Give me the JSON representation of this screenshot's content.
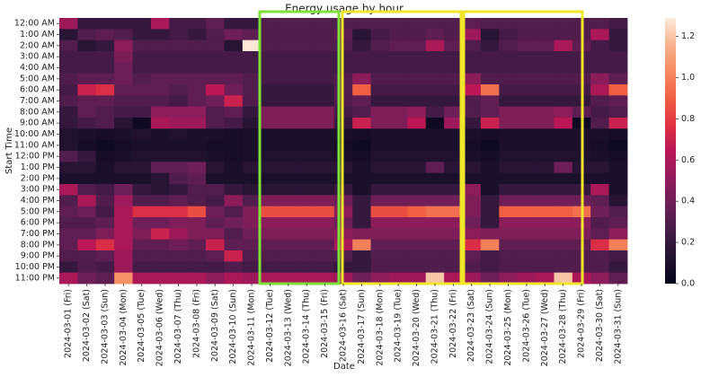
{
  "chart_data": {
    "type": "heatmap",
    "title": "Energy usage by hour",
    "x_label": "Date",
    "y_label": "Start Time",
    "colormap": "rocket",
    "x": [
      "2024-03-01 (Fri)",
      "2024-03-02 (Sat)",
      "2024-03-03 (Sun)",
      "2024-03-04 (Mon)",
      "2024-03-05 (Tue)",
      "2024-03-06 (Wed)",
      "2024-03-07 (Thu)",
      "2024-03-08 (Fri)",
      "2024-03-09 (Sat)",
      "2024-03-10 (Sun)",
      "2024-03-11 (Mon)",
      "2024-03-12 (Tue)",
      "2024-03-13 (Wed)",
      "2024-03-14 (Thu)",
      "2024-03-15 (Fri)",
      "2024-03-16 (Sat)",
      "2024-03-17 (Sun)",
      "2024-03-18 (Mon)",
      "2024-03-19 (Tue)",
      "2024-03-20 (Wed)",
      "2024-03-21 (Thu)",
      "2024-03-22 (Fri)",
      "2024-03-23 (Sat)",
      "2024-03-24 (Sun)",
      "2024-03-25 (Mon)",
      "2024-03-26 (Tue)",
      "2024-03-27 (Wed)",
      "2024-03-28 (Thu)",
      "2024-03-29 (Fri)",
      "2024-03-30 (Sat)",
      "2024-03-31 (Sun)"
    ],
    "y": [
      "12:00 AM",
      "1:00 AM",
      "2:00 AM",
      "3:00 AM",
      "4:00 AM",
      "5:00 AM",
      "6:00 AM",
      "7:00 AM",
      "8:00 AM",
      "9:00 AM",
      "10:00 AM",
      "11:00 AM",
      "12:00 PM",
      "1:00 PM",
      "2:00 PM",
      "3:00 PM",
      "4:00 PM",
      "5:00 PM",
      "6:00 PM",
      "7:00 PM",
      "8:00 PM",
      "9:00 PM",
      "10:00 PM",
      "11:00 PM"
    ],
    "z": [
      [
        0.55,
        0.2,
        0.2,
        0.2,
        0.2,
        0.6,
        0.25,
        0.25,
        0.35,
        0.2,
        0.2,
        0.3,
        0.3,
        0.3,
        0.3,
        0.3,
        0.3,
        0.3,
        0.3,
        0.3,
        0.3,
        0.3,
        0.35,
        0.3,
        0.3,
        0.3,
        0.3,
        0.3,
        0.3,
        0.3,
        0.25
      ],
      [
        0.15,
        0.3,
        0.35,
        0.3,
        0.2,
        0.2,
        0.25,
        0.2,
        0.3,
        0.4,
        0.35,
        0.3,
        0.3,
        0.3,
        0.3,
        0.35,
        0.15,
        0.25,
        0.3,
        0.3,
        0.35,
        0.3,
        0.55,
        0.15,
        0.25,
        0.3,
        0.3,
        0.3,
        0.3,
        0.6,
        0.2
      ],
      [
        0.3,
        0.15,
        0.2,
        0.5,
        0.3,
        0.3,
        0.3,
        0.3,
        0.3,
        0.15,
        1.28,
        0.3,
        0.3,
        0.3,
        0.3,
        0.3,
        0.2,
        0.3,
        0.35,
        0.35,
        0.6,
        0.35,
        0.3,
        0.2,
        0.3,
        0.35,
        0.35,
        0.6,
        0.35,
        0.25,
        0.2
      ],
      [
        0.25,
        0.25,
        0.25,
        0.45,
        0.25,
        0.25,
        0.25,
        0.25,
        0.25,
        0.25,
        0.25,
        0.25,
        0.25,
        0.25,
        0.25,
        0.25,
        0.25,
        0.25,
        0.25,
        0.25,
        0.25,
        0.25,
        0.25,
        0.25,
        0.25,
        0.25,
        0.25,
        0.25,
        0.25,
        0.25,
        0.25
      ],
      [
        0.25,
        0.25,
        0.25,
        0.4,
        0.25,
        0.25,
        0.25,
        0.25,
        0.25,
        0.25,
        0.25,
        0.25,
        0.25,
        0.25,
        0.25,
        0.25,
        0.25,
        0.25,
        0.25,
        0.25,
        0.25,
        0.25,
        0.25,
        0.25,
        0.25,
        0.25,
        0.25,
        0.25,
        0.25,
        0.25,
        0.25
      ],
      [
        0.3,
        0.35,
        0.35,
        0.4,
        0.3,
        0.35,
        0.35,
        0.35,
        0.35,
        0.35,
        0.3,
        0.25,
        0.25,
        0.25,
        0.25,
        0.3,
        0.5,
        0.3,
        0.3,
        0.3,
        0.3,
        0.3,
        0.5,
        0.3,
        0.3,
        0.3,
        0.3,
        0.3,
        0.3,
        0.5,
        0.35
      ],
      [
        0.25,
        0.7,
        0.75,
        0.35,
        0.35,
        0.35,
        0.3,
        0.35,
        0.65,
        0.4,
        0.3,
        0.2,
        0.2,
        0.2,
        0.2,
        0.3,
        0.9,
        0.25,
        0.25,
        0.25,
        0.25,
        0.25,
        0.65,
        0.95,
        0.25,
        0.25,
        0.25,
        0.25,
        0.25,
        0.6,
        0.9
      ],
      [
        0.3,
        0.35,
        0.35,
        0.3,
        0.3,
        0.3,
        0.25,
        0.35,
        0.4,
        0.7,
        0.3,
        0.2,
        0.2,
        0.2,
        0.2,
        0.3,
        0.35,
        0.2,
        0.2,
        0.2,
        0.2,
        0.2,
        0.3,
        0.35,
        0.2,
        0.2,
        0.2,
        0.2,
        0.2,
        0.3,
        0.35
      ],
      [
        0.2,
        0.35,
        0.3,
        0.25,
        0.25,
        0.5,
        0.5,
        0.5,
        0.3,
        0.35,
        0.2,
        0.45,
        0.45,
        0.45,
        0.45,
        0.25,
        0.3,
        0.45,
        0.45,
        0.5,
        0.25,
        0.4,
        0.3,
        0.35,
        0.45,
        0.45,
        0.45,
        0.5,
        0.35,
        0.25,
        0.3
      ],
      [
        0.2,
        0.25,
        0.3,
        0.15,
        0.05,
        0.6,
        0.55,
        0.55,
        0.3,
        0.25,
        0.15,
        0.45,
        0.45,
        0.45,
        0.45,
        0.2,
        0.7,
        0.45,
        0.45,
        0.65,
        0.05,
        0.55,
        0.2,
        0.7,
        0.45,
        0.45,
        0.45,
        0.65,
        0.05,
        0.3,
        0.7
      ],
      [
        0.12,
        0.1,
        0.08,
        0.1,
        0.12,
        0.1,
        0.12,
        0.1,
        0.1,
        0.08,
        0.1,
        0.1,
        0.1,
        0.1,
        0.1,
        0.1,
        0.08,
        0.1,
        0.1,
        0.1,
        0.1,
        0.1,
        0.1,
        0.08,
        0.1,
        0.1,
        0.1,
        0.1,
        0.1,
        0.1,
        0.08
      ],
      [
        0.12,
        0.08,
        0.05,
        0.08,
        0.1,
        0.1,
        0.1,
        0.1,
        0.08,
        0.08,
        0.1,
        0.1,
        0.1,
        0.1,
        0.1,
        0.08,
        0.05,
        0.1,
        0.1,
        0.1,
        0.1,
        0.1,
        0.08,
        0.05,
        0.1,
        0.1,
        0.1,
        0.1,
        0.1,
        0.08,
        0.05
      ],
      [
        0.3,
        0.2,
        0.08,
        0.1,
        0.12,
        0.12,
        0.12,
        0.12,
        0.1,
        0.08,
        0.1,
        0.12,
        0.12,
        0.12,
        0.12,
        0.1,
        0.08,
        0.12,
        0.12,
        0.12,
        0.12,
        0.12,
        0.1,
        0.08,
        0.12,
        0.12,
        0.12,
        0.12,
        0.12,
        0.1,
        0.08
      ],
      [
        0.15,
        0.15,
        0.1,
        0.15,
        0.15,
        0.35,
        0.35,
        0.4,
        0.15,
        0.1,
        0.15,
        0.15,
        0.15,
        0.15,
        0.15,
        0.15,
        0.1,
        0.15,
        0.15,
        0.15,
        0.35,
        0.15,
        0.15,
        0.1,
        0.15,
        0.15,
        0.15,
        0.4,
        0.15,
        0.15,
        0.1
      ],
      [
        0.1,
        0.1,
        0.1,
        0.1,
        0.1,
        0.15,
        0.3,
        0.35,
        0.1,
        0.1,
        0.1,
        0.1,
        0.1,
        0.1,
        0.1,
        0.1,
        0.1,
        0.1,
        0.1,
        0.1,
        0.1,
        0.1,
        0.1,
        0.1,
        0.1,
        0.1,
        0.1,
        0.1,
        0.1,
        0.1,
        0.1
      ],
      [
        0.6,
        0.3,
        0.25,
        0.4,
        0.2,
        0.15,
        0.2,
        0.3,
        0.3,
        0.2,
        0.15,
        0.15,
        0.15,
        0.15,
        0.15,
        0.2,
        0.1,
        0.2,
        0.2,
        0.2,
        0.2,
        0.2,
        0.5,
        0.1,
        0.2,
        0.2,
        0.2,
        0.2,
        0.2,
        0.6,
        0.1
      ],
      [
        0.3,
        0.6,
        0.3,
        0.55,
        0.3,
        0.3,
        0.35,
        0.3,
        0.25,
        0.5,
        0.3,
        0.45,
        0.45,
        0.45,
        0.45,
        0.4,
        0.2,
        0.4,
        0.4,
        0.4,
        0.4,
        0.4,
        0.45,
        0.2,
        0.4,
        0.4,
        0.4,
        0.4,
        0.4,
        0.35,
        0.15
      ],
      [
        0.35,
        0.4,
        0.25,
        0.6,
        0.75,
        0.75,
        0.75,
        0.85,
        0.4,
        0.3,
        0.45,
        0.85,
        0.85,
        0.85,
        0.85,
        0.5,
        0.2,
        0.85,
        0.85,
        0.9,
        0.95,
        0.95,
        0.45,
        0.2,
        0.9,
        0.9,
        0.9,
        0.9,
        0.95,
        0.4,
        0.3
      ],
      [
        0.3,
        0.3,
        0.35,
        0.6,
        0.4,
        0.4,
        0.45,
        0.45,
        0.35,
        0.4,
        0.45,
        0.5,
        0.5,
        0.5,
        0.5,
        0.4,
        0.2,
        0.5,
        0.5,
        0.5,
        0.5,
        0.5,
        0.4,
        0.2,
        0.5,
        0.5,
        0.5,
        0.5,
        0.5,
        0.3,
        0.35
      ],
      [
        0.35,
        0.35,
        0.45,
        0.6,
        0.45,
        0.7,
        0.55,
        0.45,
        0.45,
        0.3,
        0.4,
        0.45,
        0.45,
        0.45,
        0.45,
        0.5,
        0.45,
        0.45,
        0.45,
        0.45,
        0.45,
        0.45,
        0.5,
        0.45,
        0.45,
        0.45,
        0.45,
        0.45,
        0.45,
        0.35,
        0.5
      ],
      [
        0.35,
        0.65,
        0.75,
        0.6,
        0.35,
        0.35,
        0.4,
        0.35,
        0.7,
        0.35,
        0.35,
        0.35,
        0.35,
        0.35,
        0.35,
        0.6,
        1.0,
        0.35,
        0.35,
        0.35,
        0.35,
        0.35,
        0.75,
        1.0,
        0.35,
        0.35,
        0.35,
        0.35,
        0.35,
        0.75,
        1.0
      ],
      [
        0.3,
        0.3,
        0.35,
        0.55,
        0.3,
        0.3,
        0.3,
        0.3,
        0.35,
        0.7,
        0.3,
        0.3,
        0.3,
        0.3,
        0.3,
        0.3,
        0.2,
        0.3,
        0.3,
        0.3,
        0.3,
        0.3,
        0.35,
        0.25,
        0.3,
        0.3,
        0.3,
        0.3,
        0.3,
        0.3,
        0.25
      ],
      [
        0.2,
        0.3,
        0.25,
        0.55,
        0.25,
        0.25,
        0.25,
        0.25,
        0.25,
        0.3,
        0.25,
        0.25,
        0.25,
        0.25,
        0.25,
        0.2,
        0.2,
        0.3,
        0.3,
        0.3,
        0.3,
        0.3,
        0.3,
        0.25,
        0.3,
        0.3,
        0.3,
        0.3,
        0.3,
        0.3,
        0.2
      ],
      [
        0.6,
        0.4,
        0.35,
        1.05,
        0.6,
        0.6,
        0.6,
        0.6,
        0.5,
        0.6,
        0.55,
        0.6,
        0.6,
        0.6,
        0.6,
        0.55,
        0.4,
        0.5,
        0.55,
        0.55,
        1.2,
        0.6,
        0.55,
        0.4,
        0.5,
        0.55,
        0.6,
        1.2,
        0.6,
        0.5,
        0.35
      ]
    ],
    "clim": [
      0,
      1.29
    ],
    "cticks": [
      {
        "value": 0,
        "label": "0.0"
      },
      0.2,
      0.4,
      0.6,
      0.8,
      {
        "value": 1,
        "label": "1.0"
      },
      1.2
    ]
  }
}
